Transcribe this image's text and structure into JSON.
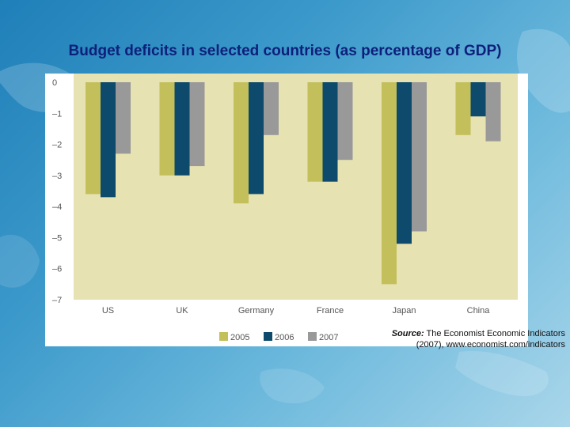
{
  "slide": {
    "title": "Budget deficits in selected countries (as percentage of GDP)",
    "source_label": "Source:",
    "source_text": "The Economist Economic Indicators (2007), www.economist.com/indicators"
  },
  "colors": {
    "plot_background": "#e6e2b2",
    "series_2005": "#c3bf5b",
    "series_2006": "#0d4a6b",
    "series_2007": "#999999"
  },
  "chart_data": {
    "type": "bar",
    "title": "Budget deficits in selected countries (as percentage of GDP)",
    "xlabel": "",
    "ylabel": "",
    "categories": [
      "US",
      "UK",
      "Germany",
      "France",
      "Japan",
      "China"
    ],
    "series": [
      {
        "name": "2005",
        "values": [
          -3.6,
          -3.0,
          -3.9,
          -3.2,
          -6.5,
          -1.7
        ]
      },
      {
        "name": "2006",
        "values": [
          -3.7,
          -3.0,
          -3.6,
          -3.2,
          -5.2,
          -1.1
        ]
      },
      {
        "name": "2007",
        "values": [
          -2.3,
          -2.7,
          -1.7,
          -2.5,
          -4.8,
          -1.9
        ]
      }
    ],
    "ylim": [
      -7,
      0
    ],
    "yticks": [
      "0",
      "–1",
      "–2",
      "–3",
      "–4",
      "–5",
      "–6",
      "–7"
    ],
    "legend_position": "bottom",
    "grid": false
  }
}
